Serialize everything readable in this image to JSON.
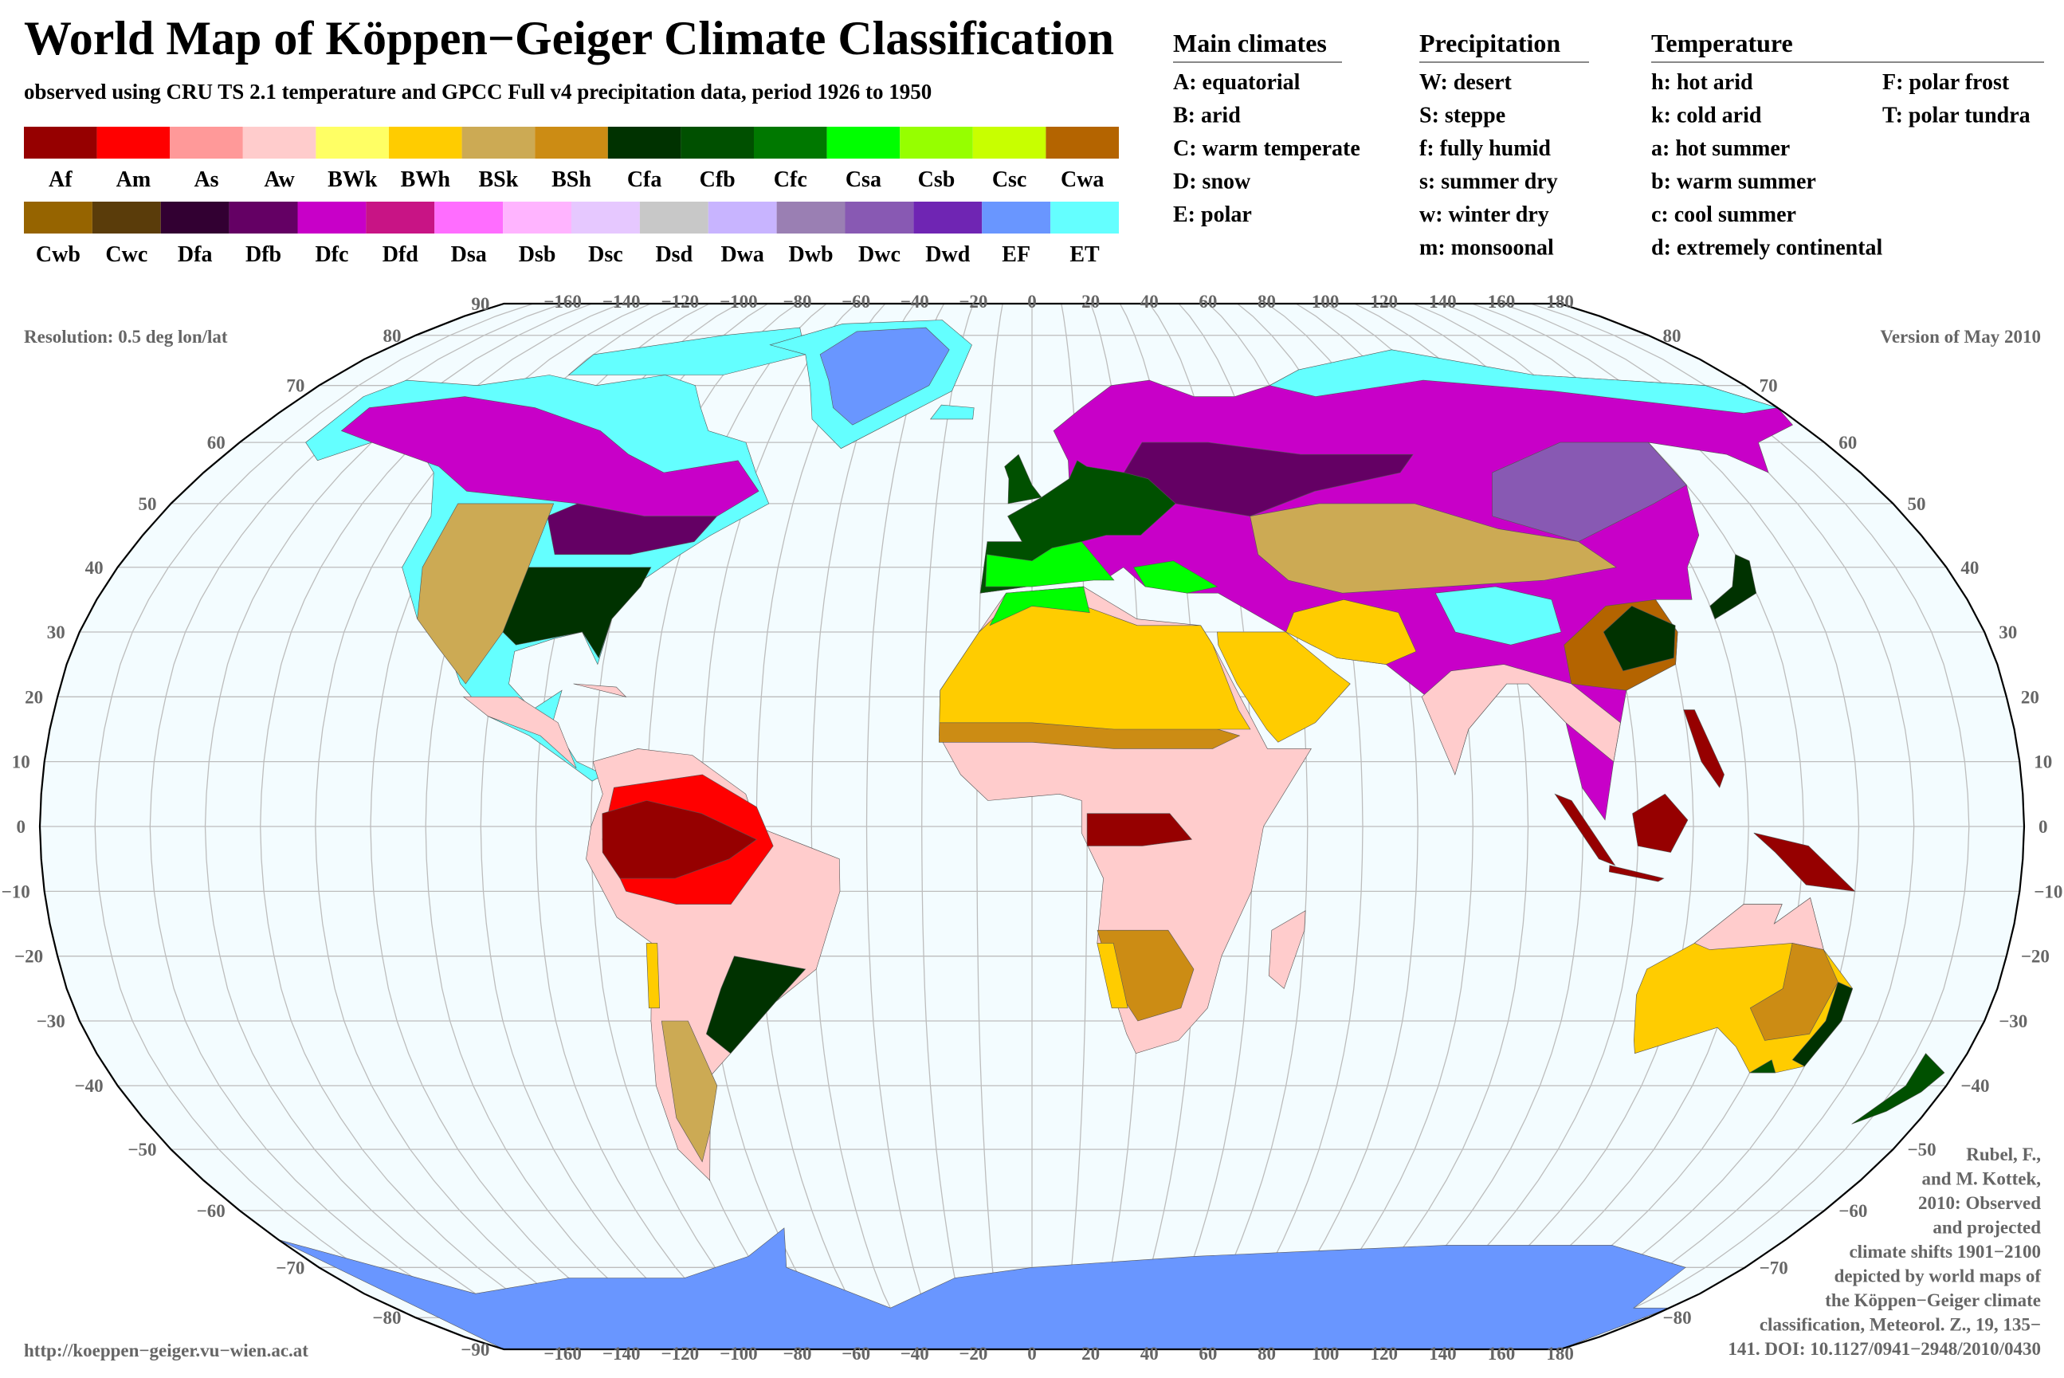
{
  "title": "World Map of Köppen−Geiger Climate Classification",
  "subtitle": "observed using CRU TS 2.1 temperature and GPCC Full v4 precipitation data, period 1926 to 1950",
  "legend": [
    [
      {
        "code": "Af",
        "color": "#960000"
      },
      {
        "code": "Am",
        "color": "#ff0000"
      },
      {
        "code": "As",
        "color": "#ff9999"
      },
      {
        "code": "Aw",
        "color": "#ffcccc"
      },
      {
        "code": "BWk",
        "color": "#ffff64"
      },
      {
        "code": "BWh",
        "color": "#ffcc00"
      },
      {
        "code": "BSk",
        "color": "#ccaa54"
      },
      {
        "code": "BSh",
        "color": "#cc8c14"
      },
      {
        "code": "Cfa",
        "color": "#003200"
      },
      {
        "code": "Cfb",
        "color": "#005000"
      },
      {
        "code": "Cfc",
        "color": "#007800"
      },
      {
        "code": "Csa",
        "color": "#00ff00"
      },
      {
        "code": "Csb",
        "color": "#96ff00"
      },
      {
        "code": "Csc",
        "color": "#c8ff00"
      },
      {
        "code": "Cwa",
        "color": "#b46400"
      }
    ],
    [
      {
        "code": "Cwb",
        "color": "#966400"
      },
      {
        "code": "Cwc",
        "color": "#5a3c0a"
      },
      {
        "code": "Dfa",
        "color": "#320032"
      },
      {
        "code": "Dfb",
        "color": "#640064"
      },
      {
        "code": "Dfc",
        "color": "#c800c8"
      },
      {
        "code": "Dfd",
        "color": "#c81485"
      },
      {
        "code": "Dsa",
        "color": "#ff6dff"
      },
      {
        "code": "Dsb",
        "color": "#ffb4ff"
      },
      {
        "code": "Dsc",
        "color": "#e6c8ff"
      },
      {
        "code": "Dsd",
        "color": "#c8c8c8"
      },
      {
        "code": "Dwa",
        "color": "#c8b4ff"
      },
      {
        "code": "Dwb",
        "color": "#9a7fb3"
      },
      {
        "code": "Dwc",
        "color": "#8859b3"
      },
      {
        "code": "Dwd",
        "color": "#6f25b3"
      },
      {
        "code": "EF",
        "color": "#6996ff"
      },
      {
        "code": "ET",
        "color": "#64ffff"
      }
    ]
  ],
  "main_climates": {
    "title": "Main climates",
    "items": [
      "A: equatorial",
      "B: arid",
      "C: warm temperate",
      "D: snow",
      "E: polar"
    ]
  },
  "precipitation": {
    "title": "Precipitation",
    "items": [
      "W: desert",
      "S: steppe",
      "f: fully humid",
      "s: summer dry",
      "w: winter dry",
      "m: monsoonal"
    ]
  },
  "temperature": {
    "title": "Temperature",
    "items": [
      "h: hot arid",
      "k: cold arid",
      "a: hot summer",
      "b: warm summer",
      "c: cool summer",
      "d: extremely continental"
    ],
    "items_right": [
      "F: polar frost",
      "T: polar tundra"
    ]
  },
  "map": {
    "lon_labels": [
      {
        "value": -160,
        "label": "−160"
      },
      {
        "value": -140,
        "label": "−140"
      },
      {
        "value": -120,
        "label": "−120"
      },
      {
        "value": -100,
        "label": "−100"
      },
      {
        "value": -80,
        "label": "−80"
      },
      {
        "value": -60,
        "label": "−60"
      },
      {
        "value": -40,
        "label": "−40"
      },
      {
        "value": -20,
        "label": "−20"
      },
      0,
      20,
      40,
      60,
      80,
      100,
      120,
      140,
      160,
      180
    ],
    "lat_labels_left": [
      90,
      80,
      70,
      60,
      50,
      40,
      30,
      20,
      10,
      0,
      {
        "value": -10,
        "label": "−10"
      },
      {
        "value": -20,
        "label": "−20"
      },
      {
        "value": -30,
        "label": "−30"
      },
      {
        "value": -40,
        "label": "−40"
      },
      {
        "value": -50,
        "label": "−50"
      },
      {
        "value": -60,
        "label": "−60"
      },
      {
        "value": -70,
        "label": "−70"
      },
      {
        "value": -80,
        "label": "−80"
      },
      {
        "value": -90,
        "label": "−90"
      }
    ],
    "lat_labels_right": [
      80,
      70,
      60,
      50,
      40,
      30,
      20,
      10,
      0,
      {
        "value": -10,
        "label": "−10"
      },
      {
        "value": -20,
        "label": "−20"
      },
      {
        "value": -30,
        "label": "−30"
      },
      {
        "value": -40,
        "label": "−40"
      },
      {
        "value": -50,
        "label": "−50"
      },
      {
        "value": -60,
        "label": "−60"
      },
      {
        "value": -70,
        "label": "−70"
      },
      {
        "value": -80,
        "label": "−80"
      }
    ]
  },
  "resolution": "Resolution: 0.5 deg lon/lat",
  "version": "Version of May 2010",
  "url": "http://koeppen−geiger.vu−wien.ac.at",
  "citation": [
    "Rubel, F.,",
    "and M. Kottek,",
    "2010: Observed",
    "and projected",
    "climate shifts 1901−2100",
    "depicted by world maps of",
    "the Köppen−Geiger climate",
    "classification, Meteorol. Z., 19, 135−",
    "141. DOI: 10.1127/0941−2948/2010/0430"
  ]
}
